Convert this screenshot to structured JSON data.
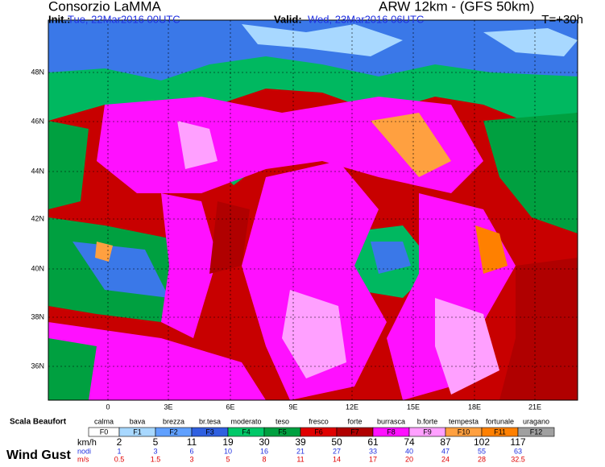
{
  "header": {
    "title": "Consorzio LaMMA",
    "model": "ARW 12km - (GFS 50km)",
    "init_label": "Init.:",
    "init": "Tue, 22Mar2016 00UTC",
    "valid_label": "Valid:",
    "valid": "Wed, 23Mar2016 06UTC",
    "step": "T=+30h"
  },
  "map": {
    "lat_labels": [
      "48N",
      "46N",
      "44N",
      "42N",
      "40N",
      "38N",
      "36N"
    ],
    "lon_labels": [
      "0",
      "3E",
      "6E",
      "9E",
      "12E",
      "15E",
      "18E",
      "21E"
    ]
  },
  "legend": {
    "scale_label": "Scala Beaufort",
    "levels": [
      {
        "name": "calma",
        "code": "F0",
        "color": "#ffffff"
      },
      {
        "name": "bava",
        "code": "F1",
        "color": "#a8d8ff"
      },
      {
        "name": "brezza",
        "code": "F2",
        "color": "#60a0ff"
      },
      {
        "name": "br.tesa",
        "code": "F3",
        "color": "#3060e0"
      },
      {
        "name": "moderato",
        "code": "F4",
        "color": "#00c868"
      },
      {
        "name": "teso",
        "code": "F5",
        "color": "#00a040"
      },
      {
        "name": "fresco",
        "code": "F6",
        "color": "#e00000"
      },
      {
        "name": "forte",
        "code": "F7",
        "color": "#b00000"
      },
      {
        "name": "burrasca",
        "code": "F8",
        "color": "#ff10ff"
      },
      {
        "name": "b.forte",
        "code": "F9",
        "color": "#ffa0ff"
      },
      {
        "name": "tempesta",
        "code": "F10",
        "color": "#ffa040"
      },
      {
        "name": "fortunale",
        "code": "F11",
        "color": "#ff8000"
      },
      {
        "name": "uragano",
        "code": "F12",
        "color": "#a0a0a0"
      }
    ],
    "gust_label": "Wind Gust",
    "units": [
      "km/h",
      "nodi",
      "m/s"
    ],
    "kmh": [
      2,
      5,
      11,
      19,
      30,
      39,
      50,
      61,
      74,
      87,
      102,
      117
    ],
    "knots": [
      1,
      3,
      6,
      10,
      16,
      21,
      27,
      33,
      40,
      47,
      55,
      63
    ],
    "ms": [
      0.5,
      1.5,
      3,
      5,
      8,
      11,
      14,
      17,
      20,
      24,
      28,
      32.5
    ]
  }
}
